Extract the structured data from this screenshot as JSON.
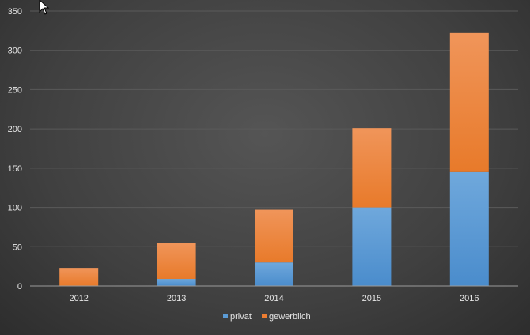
{
  "chart_data": {
    "type": "bar",
    "stacked": true,
    "categories": [
      "2012",
      "2013",
      "2014",
      "2015",
      "2016"
    ],
    "series": [
      {
        "name": "privat",
        "values": [
          0,
          9,
          30,
          100,
          145
        ],
        "color": "#5b9bd5"
      },
      {
        "name": "gewerblich",
        "values": [
          23,
          46,
          67,
          101,
          177
        ],
        "color": "#ed7d31"
      }
    ],
    "ylim": [
      0,
      350
    ],
    "yticks": [
      "0",
      "50",
      "100",
      "150",
      "200",
      "250",
      "300",
      "350"
    ],
    "ytick_values": [
      0,
      50,
      100,
      150,
      200,
      250,
      300,
      350
    ],
    "grid": true,
    "legend": "bottom"
  },
  "colors": {
    "background": "#404040",
    "gridline": "#5a5a5a",
    "axis_text": "#e6e6e6"
  },
  "icons": {
    "cursor": "mouse-pointer-icon"
  }
}
